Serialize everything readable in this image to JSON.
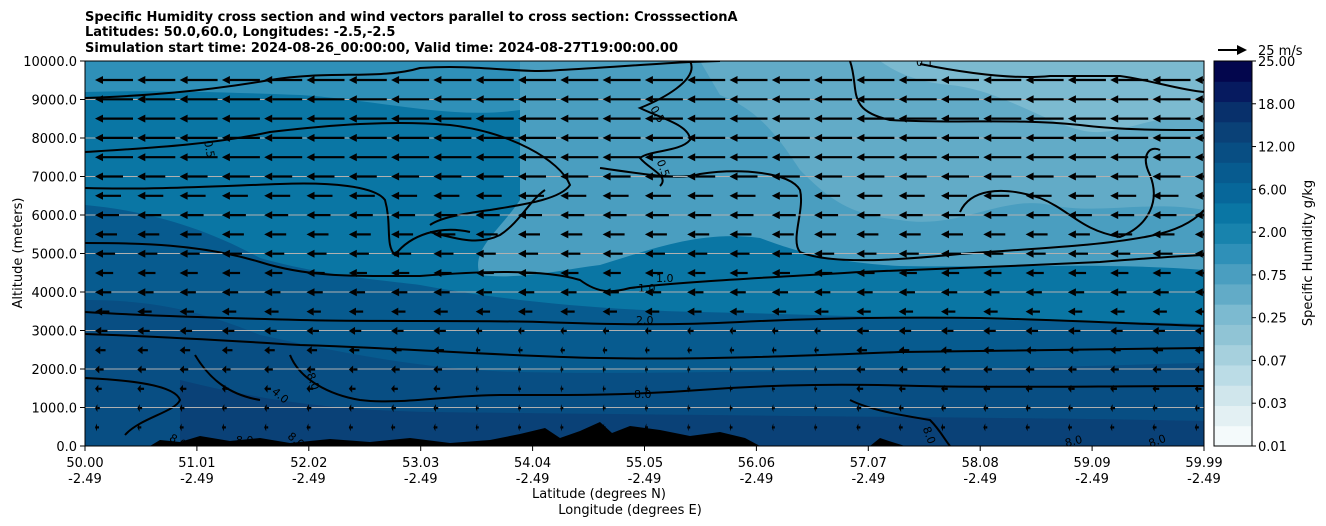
{
  "chart_data": {
    "type": "heatmap",
    "title_lines": [
      "Specific Humidity cross section and wind vectors parallel to cross section: CrosssectionA",
      "Latitudes: 50.0,60.0, Longitudes: -2.5,-2.5",
      "Simulation start time: 2024-08-26_00:00:00, Valid time: 2024-08-27T19:00:00.00"
    ],
    "ylabel": "Altitude (meters)",
    "xlabel_lines": [
      "Latitude (degrees N)",
      "Longitude (degrees E)"
    ],
    "ylim": [
      0,
      10000
    ],
    "y_ticks": [
      0,
      1000,
      2000,
      3000,
      4000,
      5000,
      6000,
      7000,
      8000,
      9000,
      10000
    ],
    "y_tick_labels": [
      "0.0",
      "1000.0",
      "2000.0",
      "3000.0",
      "4000.0",
      "5000.0",
      "6000.0",
      "7000.0",
      "8000.0",
      "9000.0",
      "10000.0"
    ],
    "x_ticks": [
      {
        "lat": "50.00",
        "lon": "-2.49"
      },
      {
        "lat": "51.01",
        "lon": "-2.49"
      },
      {
        "lat": "52.02",
        "lon": "-2.49"
      },
      {
        "lat": "53.03",
        "lon": "-2.49"
      },
      {
        "lat": "54.04",
        "lon": "-2.49"
      },
      {
        "lat": "55.05",
        "lon": "-2.49"
      },
      {
        "lat": "56.06",
        "lon": "-2.49"
      },
      {
        "lat": "57.07",
        "lon": "-2.49"
      },
      {
        "lat": "58.08",
        "lon": "-2.49"
      },
      {
        "lat": "59.09",
        "lon": "-2.49"
      },
      {
        "lat": "59.99",
        "lon": "-2.49"
      }
    ],
    "grid": "horizontal",
    "colorbar": {
      "label": "Specific Humidity g/kg",
      "levels": [
        "0.01",
        "0.02",
        "0.03",
        "0.05",
        "0.07",
        "0.10",
        "0.25",
        "0.50",
        "0.75",
        "1.00",
        "2.00",
        "4.00",
        "6.00",
        "8.00",
        "12.00",
        "15.00",
        "18.00",
        "21.00",
        "25.00"
      ],
      "tick_labels": [
        "0.01",
        "0.03",
        "0.07",
        "0.25",
        "0.75",
        "2.00",
        "6.00",
        "12.00",
        "18.00",
        "25.00"
      ],
      "colors": [
        "#f4fafb",
        "#e3f0f3",
        "#d0e6ec",
        "#bbdce6",
        "#a6d0dd",
        "#90c4d5",
        "#7cbad0",
        "#62abc7",
        "#4a9ec0",
        "#2f90b8",
        "#1883ad",
        "#0a76a4",
        "#07679a",
        "#075b8f",
        "#084e83",
        "#0a4177",
        "#08306b",
        "#061a5f",
        "#03064d"
      ]
    },
    "quiver_key": "25 m/s",
    "wind_direction": "southward (toward lower latitude)",
    "contour_labels": [
      "0.1",
      "0.5",
      "0.5",
      "0.5",
      "1.0",
      "1.0",
      "2.0",
      "4.0",
      "8.0",
      "8.0",
      "8.0",
      "8.0",
      "8.0",
      "8.0",
      "8.0",
      "8.0"
    ]
  }
}
